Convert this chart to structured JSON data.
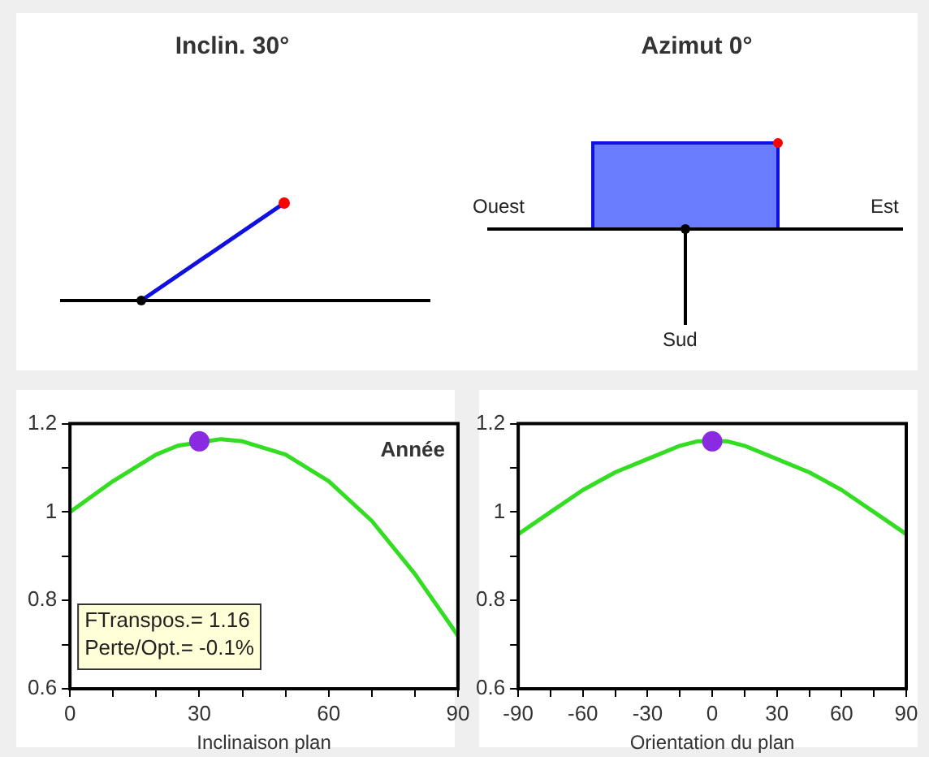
{
  "chart_data": [
    {
      "type": "line",
      "title": "Inclin. 30°",
      "xlabel": "Inclinaison plan",
      "xlim": [
        0,
        90
      ],
      "xticks": [
        0,
        {
          "value": 10,
          "label": null
        },
        {
          "value": 20,
          "label": null
        },
        30,
        {
          "value": 40,
          "label": null
        },
        {
          "value": 50,
          "label": null
        },
        60,
        {
          "value": 70,
          "label": null
        },
        {
          "value": 80,
          "label": null
        },
        90
      ],
      "ylim": [
        0.6,
        1.2
      ],
      "yticks": [
        0.6,
        {
          "value": 0.7,
          "label": null
        },
        0.8,
        {
          "value": 0.9,
          "label": null
        },
        1.0,
        {
          "value": 1.1,
          "label": null
        },
        1.2
      ],
      "series": [
        {
          "color": "#33dd22",
          "x": [
            0,
            10,
            20,
            25,
            35,
            40,
            50,
            60,
            70,
            80,
            90
          ],
          "values": [
            1.0,
            1.07,
            1.13,
            1.15,
            1.165,
            1.16,
            1.13,
            1.07,
            0.98,
            0.86,
            0.72
          ]
        },
        {
          "type": "scatter",
          "color": "#8a2be2",
          "x": [
            30
          ],
          "values": [
            1.16
          ]
        }
      ],
      "annotations": [
        "Année",
        "FTranspos.= 1.16",
        "Perte/Opt.= -0.1%"
      ],
      "grid": false,
      "legend": false
    },
    {
      "type": "line",
      "title": "Azimut 0°",
      "xlabel": "Orientation du plan",
      "xlim": [
        -90,
        90
      ],
      "xticks": [
        -90,
        {
          "value": -75,
          "label": null
        },
        -60,
        {
          "value": -45,
          "label": null
        },
        -30,
        {
          "value": -15,
          "label": null
        },
        0,
        {
          "value": 15,
          "label": null
        },
        30,
        {
          "value": 45,
          "label": null
        },
        60,
        {
          "value": 75,
          "label": null
        },
        90
      ],
      "ylim": [
        0.6,
        1.2
      ],
      "yticks": [
        0.6,
        {
          "value": 0.7,
          "label": null
        },
        0.8,
        {
          "value": 0.9,
          "label": null
        },
        1.0,
        {
          "value": 1.1,
          "label": null
        },
        1.2
      ],
      "series": [
        {
          "color": "#33dd22",
          "x": [
            -90,
            -75,
            -60,
            -45,
            -30,
            -15,
            -7,
            7,
            15,
            30,
            45,
            60,
            75,
            90
          ],
          "values": [
            0.95,
            1.0,
            1.05,
            1.09,
            1.12,
            1.15,
            1.16,
            1.16,
            1.15,
            1.12,
            1.09,
            1.05,
            1.0,
            0.95
          ]
        },
        {
          "type": "scatter",
          "color": "#8a2be2",
          "x": [
            0
          ],
          "values": [
            1.16
          ]
        }
      ],
      "annotations": [
        "Ouest",
        "Est",
        "Sud"
      ],
      "grid": false,
      "legend": false
    }
  ]
}
